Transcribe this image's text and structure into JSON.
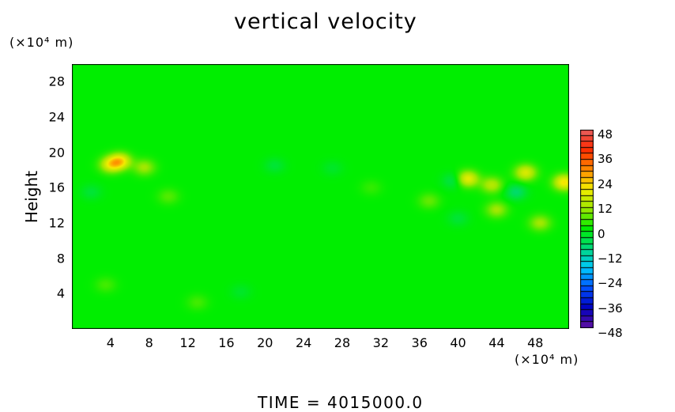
{
  "chart_data": {
    "type": "heatmap",
    "title": "vertical velocity",
    "xlabel": "",
    "ylabel": "Height",
    "x_unit": "(×10⁴ m)",
    "y_unit": "(×10⁴ m)",
    "xlim": [
      0,
      51.5
    ],
    "ylim": [
      0,
      30
    ],
    "xticks": [
      4,
      8,
      12,
      16,
      20,
      24,
      28,
      32,
      36,
      40,
      44,
      48
    ],
    "yticks": [
      4,
      8,
      12,
      16,
      20,
      24,
      28
    ],
    "colorbar": {
      "min": -48,
      "max": 48,
      "ticks": [
        48,
        36,
        24,
        12,
        0,
        -12,
        -24,
        -36,
        -48
      ],
      "ticklabels": [
        "48",
        "36",
        "24",
        "12",
        "0",
        "−12",
        "−24",
        "−36",
        "−48"
      ],
      "colors": [
        "#e86060",
        "#ff2a00",
        "#ff8800",
        "#f4ec00",
        "#9ee800",
        "#00ee00",
        "#00d880",
        "#00c8ff",
        "#0050ff",
        "#0000c0",
        "#6010a0"
      ]
    },
    "background_value": 0,
    "features": [
      {
        "x": 5,
        "y": 19,
        "value": 20
      },
      {
        "x": 4,
        "y": 18.6,
        "value": 16
      },
      {
        "x": 7.5,
        "y": 18.3,
        "value": 10
      },
      {
        "x": 3.5,
        "y": 5,
        "value": 4
      },
      {
        "x": 17.5,
        "y": 4.2,
        "value": -3
      },
      {
        "x": 13,
        "y": 3,
        "value": 4
      },
      {
        "x": 41,
        "y": 17,
        "value": 18
      },
      {
        "x": 43.5,
        "y": 16.3,
        "value": 12
      },
      {
        "x": 47,
        "y": 17.7,
        "value": 16
      },
      {
        "x": 51,
        "y": 16.6,
        "value": 20
      },
      {
        "x": 46,
        "y": 15.5,
        "value": -8
      },
      {
        "x": 39.5,
        "y": 16.8,
        "value": -6
      },
      {
        "x": 44,
        "y": 13.5,
        "value": 10
      },
      {
        "x": 48.5,
        "y": 12,
        "value": 10
      },
      {
        "x": 37,
        "y": 14.5,
        "value": 6
      },
      {
        "x": 40,
        "y": 12.5,
        "value": -4
      },
      {
        "x": 21,
        "y": 18.5,
        "value": -4
      },
      {
        "x": 27,
        "y": 18.2,
        "value": -3
      },
      {
        "x": 10,
        "y": 15,
        "value": 5
      },
      {
        "x": 2,
        "y": 15.5,
        "value": -4
      },
      {
        "x": 31,
        "y": 16,
        "value": 3
      }
    ]
  },
  "time_label": "TIME  =  4015000.0"
}
